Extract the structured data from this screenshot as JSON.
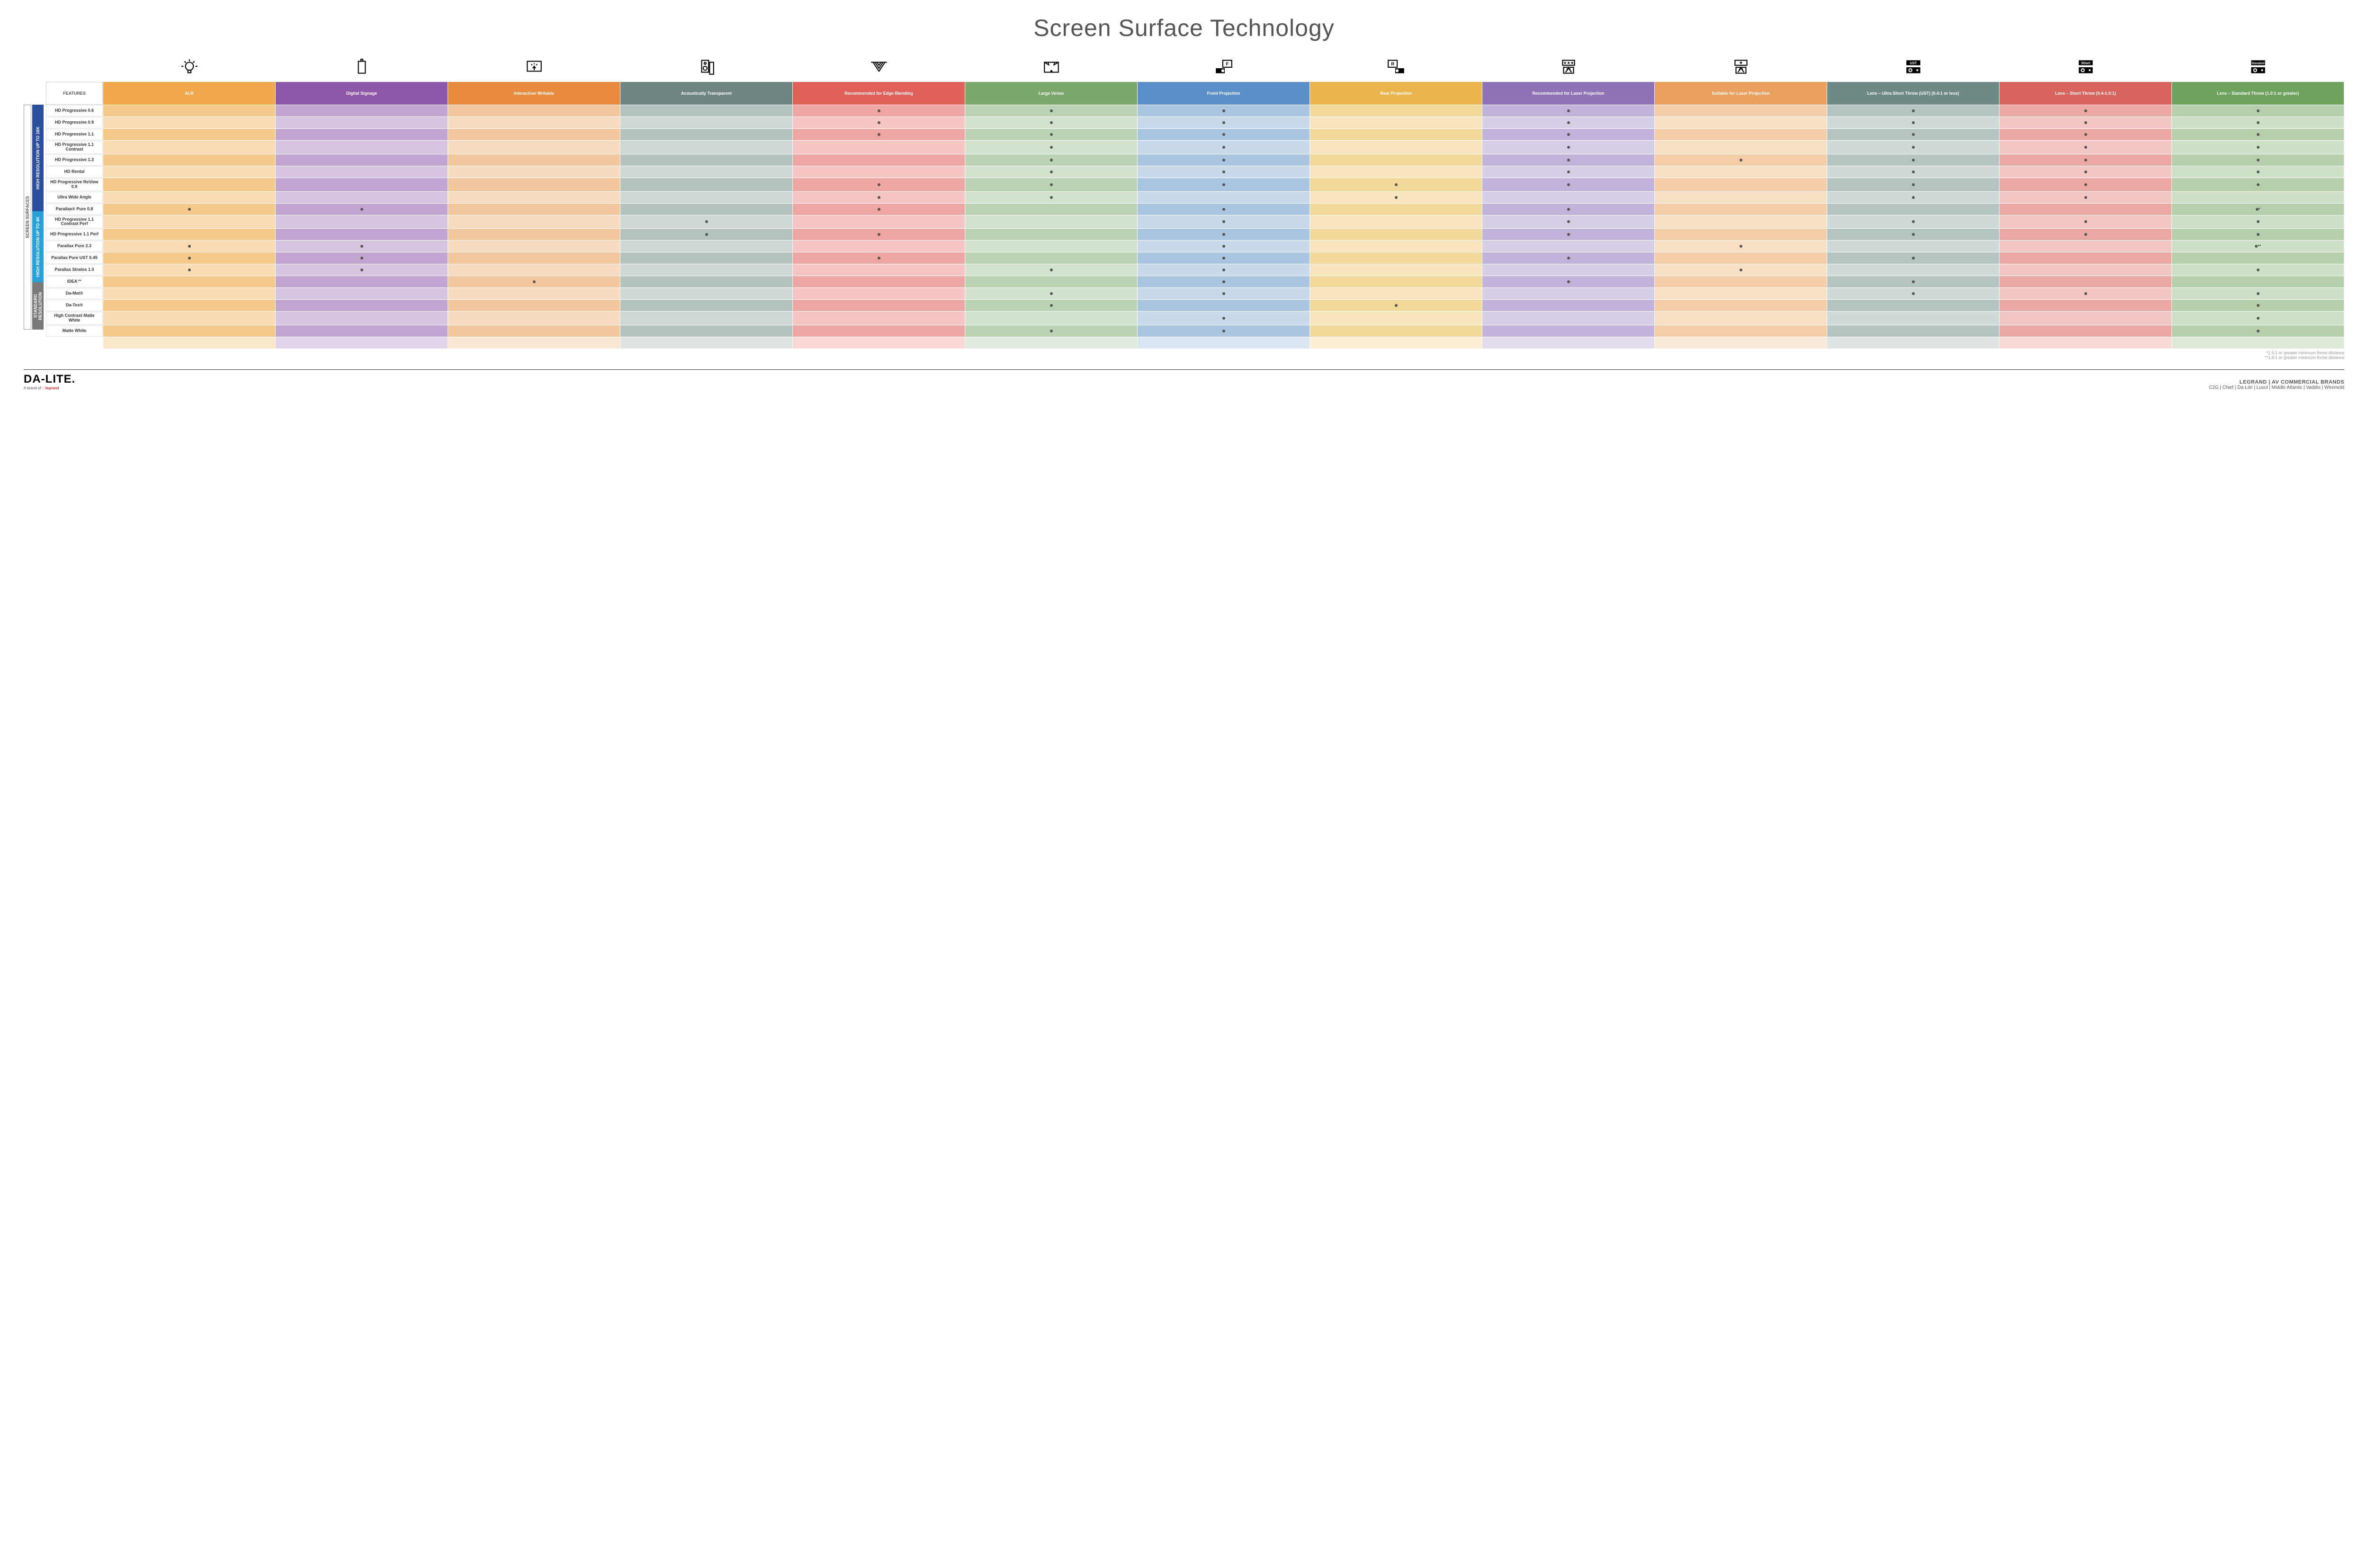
{
  "title": "Screen Surface Technology",
  "features_label": "FEATURES",
  "side_outer": "SCREEN SURFACES",
  "groups": [
    {
      "id": "g1",
      "label": "HIGH RESOLUTION UP TO 16K",
      "color": "#2b4f9e",
      "rows": 9
    },
    {
      "id": "g2",
      "label": "HIGH RESOLUTION UP TO 4K",
      "color": "#2aa0d8",
      "rows": 6
    },
    {
      "id": "g3",
      "label": "STANDARD RESOLUTION",
      "color": "#7a7a7a",
      "rows": 4
    }
  ],
  "columns": [
    {
      "id": "alr",
      "label": "ALR",
      "color": "#f0a84a",
      "alt": "#f5c98a"
    },
    {
      "id": "sig",
      "label": "Digital Signage",
      "color": "#8e58aa",
      "alt": "#c1a4d0"
    },
    {
      "id": "int",
      "label": "Interactive/ Writable",
      "color": "#e88a3d",
      "alt": "#f3c79e"
    },
    {
      "id": "ac",
      "label": "Acoustically Transparent",
      "color": "#6e8582",
      "alt": "#b4c2c0"
    },
    {
      "id": "edge",
      "label": "Recommended for Edge Blending",
      "color": "#e0605a",
      "alt": "#efa6a2"
    },
    {
      "id": "large",
      "label": "Large Venue",
      "color": "#7ca86c",
      "alt": "#bcd3b3"
    },
    {
      "id": "front",
      "label": "Front Projection",
      "color": "#5a8fc9",
      "alt": "#aac5e2"
    },
    {
      "id": "rear",
      "label": "Rear Projection",
      "color": "#eab54e",
      "alt": "#f4d79a"
    },
    {
      "id": "reclaser",
      "label": "Recommended for Laser Projection",
      "color": "#8e73b8",
      "alt": "#c0b2d8"
    },
    {
      "id": "suitlaser",
      "label": "Suitable for Laser Projection",
      "color": "#e9a05e",
      "alt": "#f3cda8"
    },
    {
      "id": "ust",
      "label": "Lens – Ultra Short Throw (UST) (0.4:1 or less)",
      "color": "#6f8a86",
      "alt": "#b5c4c1"
    },
    {
      "id": "short",
      "label": "Lens – Short Throw (0.4-1.0:1)",
      "color": "#d8645e",
      "alt": "#eaa8a4"
    },
    {
      "id": "std",
      "label": "Lens – Standard Throw (1.0:1 or greater)",
      "color": "#6ea25e",
      "alt": "#b5cfab"
    }
  ],
  "rows": [
    {
      "g": "g1",
      "label": "HD Progressive 0.6",
      "dots": {
        "edge": "•",
        "large": "•",
        "front": "•",
        "reclaser": "•",
        "ust": "•",
        "short": "•",
        "std": "•"
      }
    },
    {
      "g": "g1",
      "label": "HD Progressive 0.9",
      "dots": {
        "edge": "•",
        "large": "•",
        "front": "•",
        "reclaser": "•",
        "ust": "•",
        "short": "•",
        "std": "•"
      }
    },
    {
      "g": "g1",
      "label": "HD Progressive 1.1",
      "dots": {
        "edge": "•",
        "large": "•",
        "front": "•",
        "reclaser": "•",
        "ust": "•",
        "short": "•",
        "std": "•"
      }
    },
    {
      "g": "g1",
      "label": "HD Progressive 1.1 Contrast",
      "dots": {
        "large": "•",
        "front": "•",
        "reclaser": "•",
        "ust": "•",
        "short": "•",
        "std": "•"
      }
    },
    {
      "g": "g1",
      "label": "HD Progressive 1.3",
      "dots": {
        "large": "•",
        "front": "•",
        "reclaser": "•",
        "suitlaser": "•",
        "ust": "•",
        "short": "•",
        "std": "•"
      }
    },
    {
      "g": "g1",
      "label": "HD Rental",
      "dots": {
        "large": "•",
        "front": "•",
        "reclaser": "•",
        "ust": "•",
        "short": "•",
        "std": "•"
      }
    },
    {
      "g": "g1",
      "label": "HD Progressive ReView 0.9",
      "dots": {
        "edge": "•",
        "large": "•",
        "front": "•",
        "rear": "•",
        "reclaser": "•",
        "ust": "•",
        "short": "•",
        "std": "•"
      }
    },
    {
      "g": "g1",
      "label": "Ultra Wide Angle",
      "dots": {
        "edge": "•",
        "large": "•",
        "rear": "•",
        "ust": "•",
        "short": "•"
      }
    },
    {
      "g": "g1",
      "label": "Parallax® Pure 0.8",
      "dots": {
        "alr": "•",
        "sig": "•",
        "edge": "•",
        "front": "•",
        "reclaser": "•",
        "std": "•*"
      }
    },
    {
      "g": "g2",
      "label": "HD Progressive 1.1 Contrast Perf",
      "dots": {
        "ac": "•",
        "front": "•",
        "reclaser": "•",
        "ust": "•",
        "short": "•",
        "std": "•"
      }
    },
    {
      "g": "g2",
      "label": "HD Progressive 1.1 Perf",
      "dots": {
        "ac": "•",
        "edge": "•",
        "front": "•",
        "reclaser": "•",
        "ust": "•",
        "short": "•",
        "std": "•"
      }
    },
    {
      "g": "g2",
      "label": "Parallax Pure 2.3",
      "dots": {
        "alr": "•",
        "sig": "•",
        "front": "•",
        "suitlaser": "•",
        "std": "•**"
      }
    },
    {
      "g": "g2",
      "label": "Parallax Pure UST 0.45",
      "dots": {
        "alr": "•",
        "sig": "•",
        "edge": "•",
        "front": "•",
        "reclaser": "•",
        "ust": "•"
      }
    },
    {
      "g": "g2",
      "label": "Parallax Stratos 1.0",
      "dots": {
        "alr": "•",
        "sig": "•",
        "large": "•",
        "front": "•",
        "suitlaser": "•",
        "std": "•"
      }
    },
    {
      "g": "g2",
      "label": "IDEA™",
      "dots": {
        "int": "•",
        "front": "•",
        "reclaser": "•",
        "ust": "•"
      }
    },
    {
      "g": "g3",
      "label": "Da-Mat®",
      "dots": {
        "large": "•",
        "front": "•",
        "ust": "•",
        "short": "•",
        "std": "•"
      }
    },
    {
      "g": "g3",
      "label": "Da-Tex®",
      "dots": {
        "large": "•",
        "rear": "•",
        "std": "•"
      }
    },
    {
      "g": "g3",
      "label": "High Contrast Matte White",
      "dots": {
        "front": "•",
        "std": "•"
      }
    },
    {
      "g": "g3",
      "label": "Matte White",
      "dots": {
        "large": "•",
        "front": "•",
        "std": "•"
      }
    }
  ],
  "footnotes": [
    "*1.5:1 or greater minimum throw distance",
    "**1.8:1 or greater minimum throw distance"
  ],
  "footer": {
    "logo": "DA-LITE.",
    "logo_sub_prefix": "A brand of ",
    "logo_sub_brand": "legrand",
    "brands_title": "LEGRAND | AV COMMERCIAL BRANDS",
    "brands_list": "C2G  |  Chief  |  Da-Lite  |  Luxul  |  Middle Atlantic  |  Vaddio  |  Wiremold"
  },
  "icons": [
    "bulb",
    "signage",
    "touch",
    "speaker",
    "wide",
    "venue",
    "front",
    "rear",
    "laser-rec",
    "laser-suit",
    "ust",
    "short",
    "standard"
  ]
}
